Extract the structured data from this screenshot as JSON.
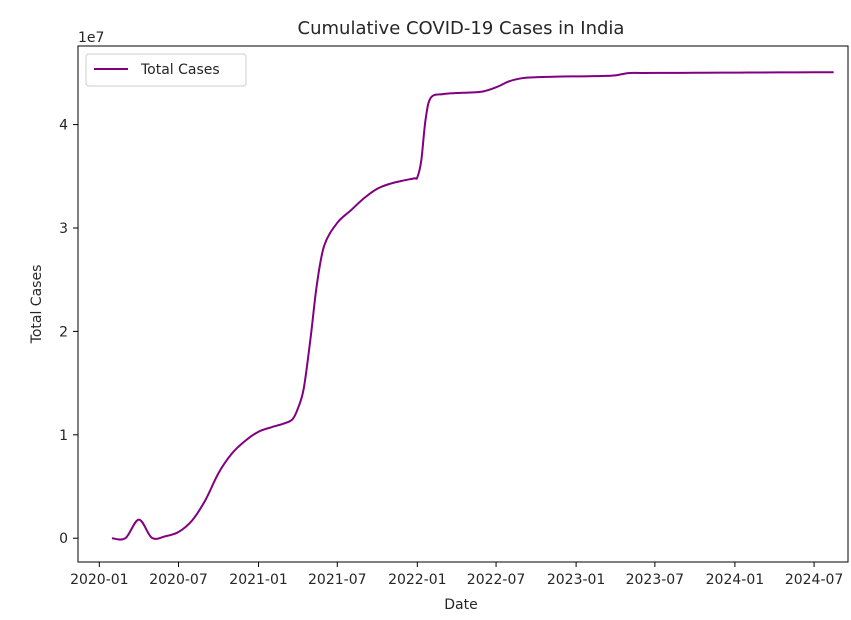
{
  "chart_data": {
    "type": "line",
    "title": "Cumulative COVID-19 Cases in India",
    "xlabel": "Date",
    "ylabel": "Total Cases",
    "y_scale_label": "1e7",
    "x_axis_type": "date",
    "xlim": [
      "2019-11-13",
      "2024-09-17"
    ],
    "ylim": [
      -2300000,
      47600000
    ],
    "x_ticks": [
      "2020-01",
      "2020-07",
      "2021-01",
      "2021-07",
      "2022-01",
      "2022-07",
      "2023-01",
      "2023-07",
      "2024-01",
      "2024-07"
    ],
    "y_ticks": [
      0,
      10000000,
      20000000,
      30000000,
      40000000
    ],
    "y_tick_labels": [
      "0",
      "1",
      "2",
      "3",
      "4"
    ],
    "grid": false,
    "legend_position": "top-left",
    "series": [
      {
        "name": "Total Cases",
        "color": "#800080",
        "x": [
          "2020-01-30",
          "2020-03-01",
          "2020-04-01",
          "2020-05-01",
          "2020-06-01",
          "2020-07-01",
          "2020-08-01",
          "2020-09-01",
          "2020-10-01",
          "2020-11-01",
          "2020-12-01",
          "2021-01-01",
          "2021-02-01",
          "2021-03-01",
          "2021-03-20",
          "2021-04-01",
          "2021-04-15",
          "2021-05-01",
          "2021-05-15",
          "2021-06-01",
          "2021-07-01",
          "2021-08-01",
          "2021-09-01",
          "2021-10-01",
          "2021-11-01",
          "2021-12-01",
          "2021-12-25",
          "2022-01-01",
          "2022-01-10",
          "2022-01-20",
          "2022-02-01",
          "2022-03-01",
          "2022-04-01",
          "2022-05-01",
          "2022-06-01",
          "2022-07-01",
          "2022-08-01",
          "2022-09-01",
          "2022-10-01",
          "2022-11-01",
          "2022-12-01",
          "2023-01-01",
          "2023-02-01",
          "2023-03-01",
          "2023-04-01",
          "2023-05-01",
          "2023-06-01",
          "2023-08-01",
          "2023-10-01",
          "2023-12-01",
          "2024-01-15",
          "2024-03-01",
          "2024-05-01",
          "2024-07-01",
          "2024-08-15"
        ],
        "y": [
          0,
          3000,
          1800000,
          35000,
          190000,
          600000,
          1700000,
          3700000,
          6300000,
          8200000,
          9400000,
          10300000,
          10750000,
          11100000,
          11500000,
          12500000,
          14500000,
          19500000,
          24500000,
          28300000,
          30500000,
          31700000,
          32900000,
          33800000,
          34300000,
          34600000,
          34800000,
          34900000,
          36500000,
          40500000,
          42600000,
          42950000,
          43050000,
          43100000,
          43200000,
          43600000,
          44200000,
          44500000,
          44580000,
          44620000,
          44650000,
          44660000,
          44680000,
          44700000,
          44760000,
          44980000,
          44990000,
          45000000,
          45010000,
          45020000,
          45030000,
          45040000,
          45050000,
          45060000,
          45060000
        ]
      }
    ]
  }
}
